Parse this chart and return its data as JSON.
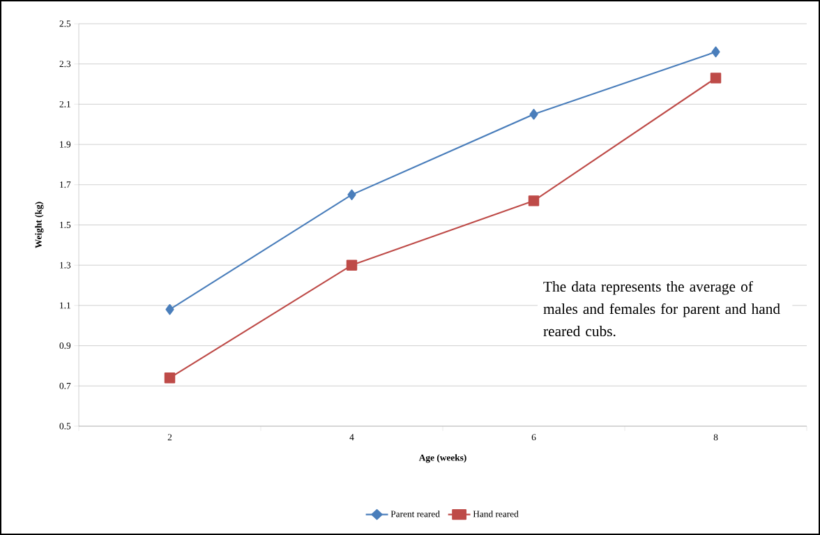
{
  "chart_data": {
    "type": "line",
    "xlabel": "Age (weeks)",
    "ylabel": "Weight (kg)",
    "categories": [
      "2",
      "4",
      "6",
      "8"
    ],
    "series": [
      {
        "name": "Parent reared",
        "color": "#4a7ebb",
        "marker": "diamond",
        "values": [
          1.08,
          1.65,
          2.05,
          2.36
        ]
      },
      {
        "name": "Hand reared",
        "color": "#be4b48",
        "marker": "square",
        "values": [
          0.74,
          1.3,
          1.62,
          2.23
        ]
      }
    ],
    "ylim": [
      0.5,
      2.5
    ],
    "yticks": [
      0.5,
      0.7,
      0.9,
      1.1,
      1.3,
      1.5,
      1.7,
      1.9,
      2.1,
      2.3,
      2.5
    ],
    "grid": "y",
    "legend": "bottom",
    "line_style": "solid",
    "annotations": [
      "The data represents the average of males and females for parent and hand reared cubs."
    ]
  }
}
